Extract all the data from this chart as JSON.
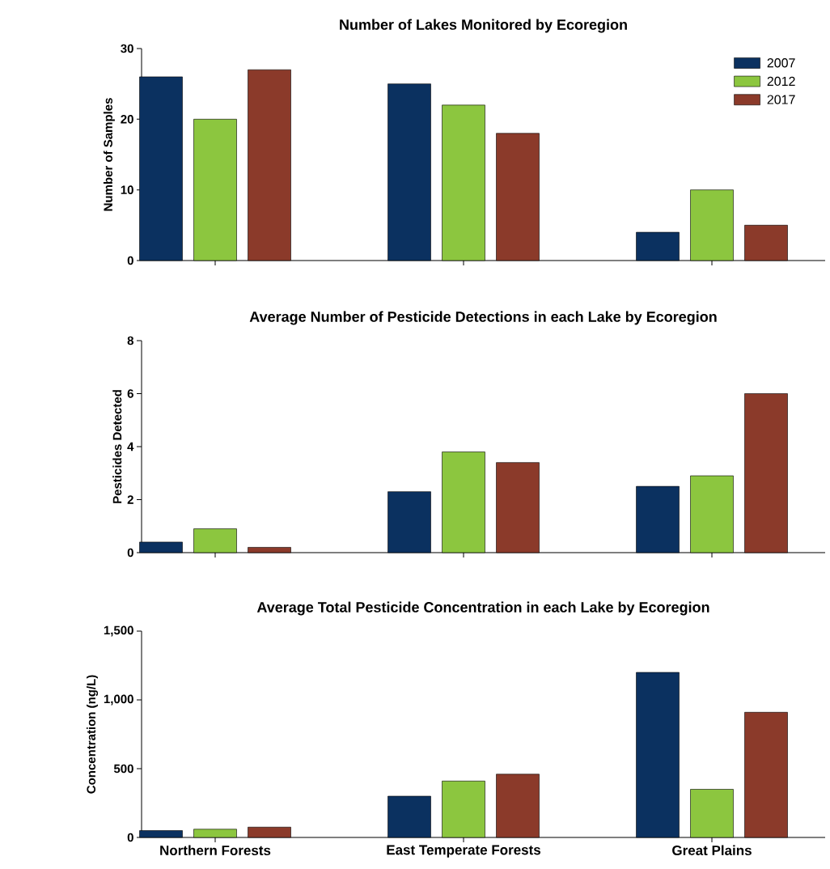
{
  "chart_data": [
    {
      "type": "bar",
      "title": "Number of Lakes Monitored by Ecoregion",
      "ylabel": "Number of Samples",
      "categories": [
        null,
        null,
        null
      ],
      "series": [
        {
          "name": "2007",
          "color": "#0b3160",
          "values": [
            26,
            25,
            4
          ]
        },
        {
          "name": "2012",
          "color": "#8cc63f",
          "values": [
            20,
            22,
            10
          ]
        },
        {
          "name": "2017",
          "color": "#8b3a2a",
          "values": [
            27,
            18,
            5
          ]
        }
      ],
      "ylim": [
        0,
        30
      ],
      "yticks": [
        0,
        10,
        20,
        30
      ],
      "legend": "top right",
      "tick_labels": "y"
    },
    {
      "type": "bar",
      "title": "Average Number of Pesticide Detections in each Lake by Ecoregion",
      "ylabel": "Pesticides Detected",
      "categories": [
        null,
        null,
        null
      ],
      "series": [
        {
          "color": "#0b3160",
          "values": [
            0.4,
            2.3,
            2.5
          ]
        },
        {
          "color": "#8cc63f",
          "values": [
            0.9,
            3.8,
            2.9
          ]
        },
        {
          "color": "#8b3a2a",
          "values": [
            0.2,
            3.4,
            6.0
          ]
        }
      ],
      "ylim": [
        0,
        8
      ],
      "yticks": [
        0,
        2,
        4,
        6,
        8
      ],
      "tick_labels": "y"
    },
    {
      "type": "bar",
      "title": "Average Total Pesticide Concentration in each Lake by Ecoregion",
      "ylabel": "Concentration  (ng/L)",
      "categories": [
        "Northern Forests",
        "East Temperate Forests",
        "Great Plains"
      ],
      "series": [
        {
          "color": "#0b3160",
          "values": [
            50,
            300,
            1200
          ]
        },
        {
          "color": "#8cc63f",
          "values": [
            60,
            410,
            350
          ]
        },
        {
          "color": "#8b3a2a",
          "values": [
            75,
            460,
            910
          ]
        }
      ],
      "ylim": [
        0,
        1500
      ],
      "yticks": [
        0,
        500,
        {
          "value": 1000,
          "label": "1,000"
        },
        {
          "value": 1500,
          "label": "1,500"
        }
      ]
    }
  ]
}
